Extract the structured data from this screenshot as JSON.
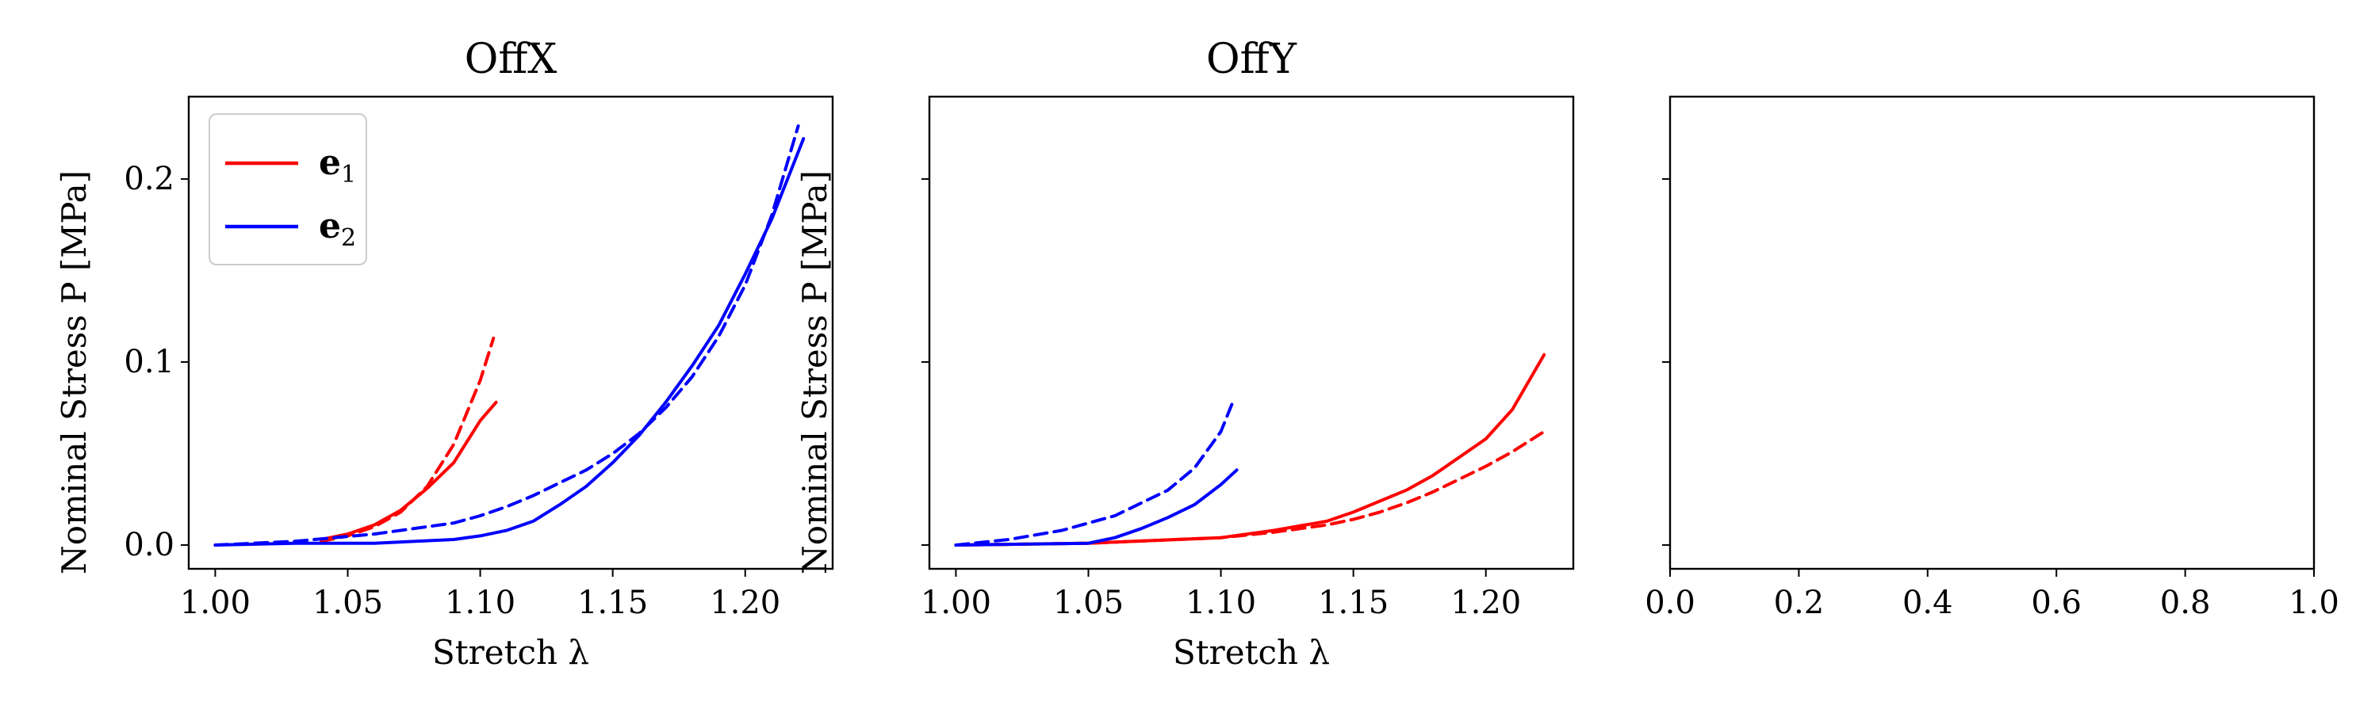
{
  "chart_data": [
    {
      "type": "line",
      "title": "OffX",
      "xlabel": "Stretch λ",
      "ylabel": "Nominal Stress P [MPa]",
      "xlim": [
        0.99,
        1.233
      ],
      "ylim": [
        -0.013,
        0.245
      ],
      "xticks": [
        "1.00",
        "1.05",
        "1.10",
        "1.15",
        "1.20"
      ],
      "xtick_values": [
        1.0,
        1.05,
        1.1,
        1.15,
        1.2
      ],
      "yticks": [
        "0.0",
        "0.1",
        "0.2"
      ],
      "ytick_values": [
        0.0,
        0.1,
        0.2
      ],
      "legend": {
        "position": "upper-left",
        "entries": [
          {
            "label": "e",
            "subscript": "1",
            "color": "#ff0000"
          },
          {
            "label": "e",
            "subscript": "2",
            "color": "#0000ff"
          }
        ]
      },
      "series": [
        {
          "name": "e1",
          "style": "solid",
          "color": "#ff0000",
          "x": [
            1.04,
            1.05,
            1.06,
            1.07,
            1.08,
            1.09,
            1.1,
            1.106
          ],
          "y": [
            0.003,
            0.006,
            0.011,
            0.019,
            0.031,
            0.045,
            0.068,
            0.078
          ]
        },
        {
          "name": "e1",
          "style": "dashed",
          "color": "#ff0000",
          "x": [
            1.04,
            1.05,
            1.06,
            1.07,
            1.08,
            1.09,
            1.1,
            1.105
          ],
          "y": [
            0.002,
            0.005,
            0.01,
            0.018,
            0.032,
            0.055,
            0.09,
            0.113
          ]
        },
        {
          "name": "e2",
          "style": "solid",
          "color": "#0000ff",
          "x": [
            1.0,
            1.03,
            1.06,
            1.09,
            1.1,
            1.11,
            1.12,
            1.13,
            1.14,
            1.15,
            1.16,
            1.17,
            1.18,
            1.19,
            1.2,
            1.21,
            1.222
          ],
          "y": [
            0.0,
            0.001,
            0.001,
            0.003,
            0.005,
            0.008,
            0.013,
            0.022,
            0.032,
            0.045,
            0.06,
            0.078,
            0.098,
            0.12,
            0.148,
            0.178,
            0.222
          ]
        },
        {
          "name": "e2",
          "style": "dashed",
          "color": "#0000ff",
          "x": [
            1.0,
            1.03,
            1.06,
            1.09,
            1.1,
            1.11,
            1.12,
            1.13,
            1.14,
            1.15,
            1.16,
            1.17,
            1.18,
            1.19,
            1.2,
            1.21,
            1.22
          ],
          "y": [
            0.0,
            0.002,
            0.006,
            0.012,
            0.016,
            0.021,
            0.027,
            0.034,
            0.041,
            0.05,
            0.061,
            0.075,
            0.092,
            0.114,
            0.142,
            0.18,
            0.229
          ]
        }
      ]
    },
    {
      "type": "line",
      "title": "OffY",
      "xlabel": "Stretch λ",
      "ylabel": "Nominal Stress P [MPa]",
      "xlim": [
        0.99,
        1.233
      ],
      "ylim": [
        -0.013,
        0.245
      ],
      "xticks": [
        "1.00",
        "1.05",
        "1.10",
        "1.15",
        "1.20"
      ],
      "xtick_values": [
        1.0,
        1.05,
        1.1,
        1.15,
        1.2
      ],
      "yticks": [],
      "ytick_values": [
        0.0,
        0.1,
        0.2
      ],
      "series": [
        {
          "name": "e1",
          "style": "solid",
          "color": "#ff0000",
          "x": [
            1.0,
            1.05,
            1.1,
            1.12,
            1.14,
            1.15,
            1.16,
            1.17,
            1.18,
            1.19,
            1.2,
            1.21,
            1.222
          ],
          "y": [
            0.0,
            0.001,
            0.004,
            0.008,
            0.013,
            0.018,
            0.024,
            0.03,
            0.038,
            0.048,
            0.058,
            0.074,
            0.104
          ]
        },
        {
          "name": "e1",
          "style": "dashed",
          "color": "#ff0000",
          "x": [
            1.0,
            1.05,
            1.1,
            1.12,
            1.14,
            1.15,
            1.16,
            1.17,
            1.18,
            1.19,
            1.2,
            1.21,
            1.222
          ],
          "y": [
            0.0,
            0.001,
            0.004,
            0.007,
            0.011,
            0.014,
            0.018,
            0.023,
            0.029,
            0.036,
            0.043,
            0.051,
            0.062
          ]
        },
        {
          "name": "e2",
          "style": "solid",
          "color": "#0000ff",
          "x": [
            1.0,
            1.05,
            1.06,
            1.07,
            1.08,
            1.09,
            1.1,
            1.106
          ],
          "y": [
            0.0,
            0.001,
            0.004,
            0.009,
            0.015,
            0.022,
            0.033,
            0.041
          ]
        },
        {
          "name": "e2",
          "style": "dashed",
          "color": "#0000ff",
          "x": [
            1.0,
            1.02,
            1.04,
            1.06,
            1.08,
            1.09,
            1.1,
            1.105
          ],
          "y": [
            0.0,
            0.003,
            0.008,
            0.016,
            0.03,
            0.042,
            0.062,
            0.08
          ]
        }
      ]
    },
    {
      "type": "line",
      "title": "",
      "xlabel": "",
      "ylabel": "",
      "xlim": [
        0.0,
        1.0
      ],
      "ylim": [
        -0.013,
        0.245
      ],
      "xticks": [
        "0.0",
        "0.2",
        "0.4",
        "0.6",
        "0.8",
        "1.0"
      ],
      "xtick_values": [
        0.0,
        0.2,
        0.4,
        0.6,
        0.8,
        1.0
      ],
      "yticks": [],
      "ytick_values": [
        0.0,
        0.1,
        0.2
      ],
      "series": []
    }
  ]
}
